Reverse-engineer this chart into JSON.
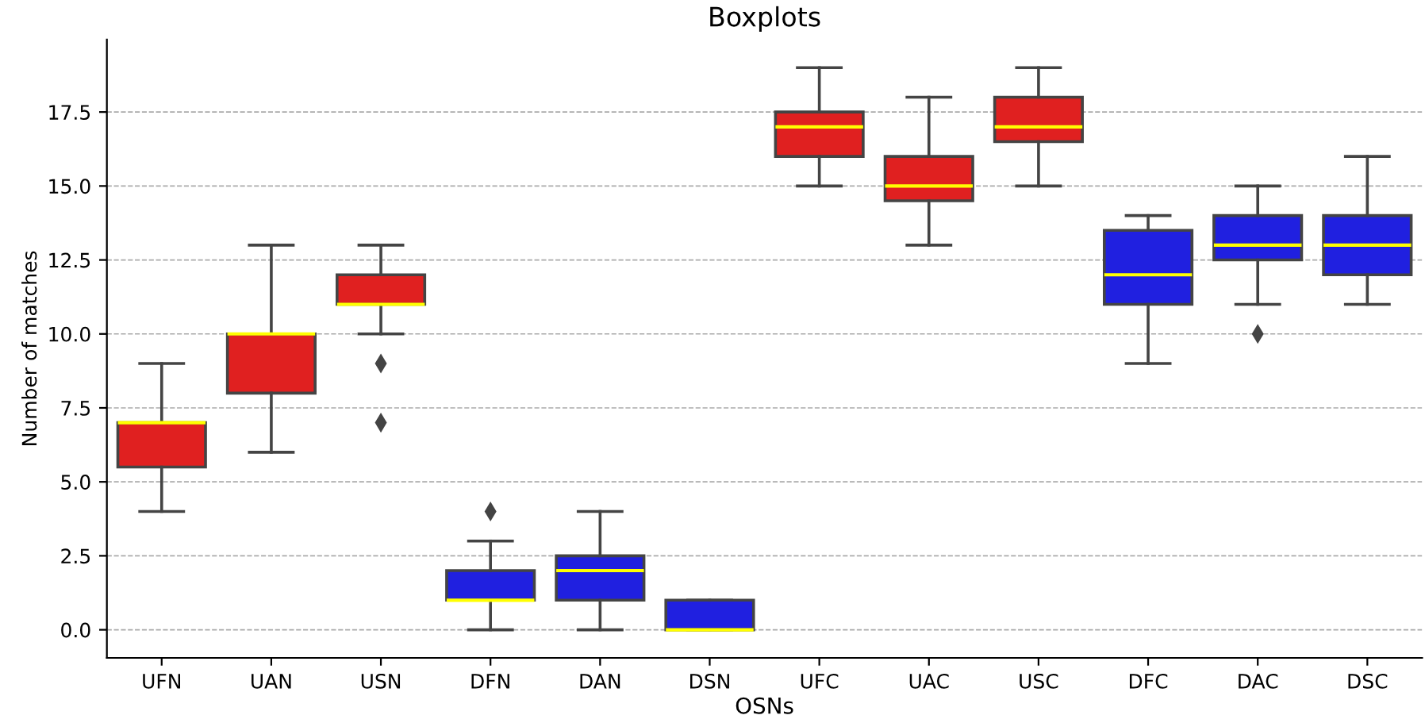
{
  "chart_data": {
    "type": "box",
    "title": "Boxplots",
    "xlabel": "OSNs",
    "ylabel": "Number of matches",
    "categories": [
      "UFN",
      "UAN",
      "USN",
      "DFN",
      "DAN",
      "DSN",
      "UFC",
      "UAC",
      "USC",
      "DFC",
      "DAC",
      "DSC"
    ],
    "colors": [
      "#e02020",
      "#e02020",
      "#e02020",
      "#2020e0",
      "#2020e0",
      "#2020e0",
      "#e02020",
      "#e02020",
      "#e02020",
      "#2020e0",
      "#2020e0",
      "#2020e0"
    ],
    "boxes": [
      {
        "low": 4,
        "q1": 5.5,
        "median": 7,
        "q3": 7,
        "high": 9
      },
      {
        "low": 6,
        "q1": 8,
        "median": 10,
        "q3": 10,
        "high": 13
      },
      {
        "low": 10,
        "q1": 11,
        "median": 11,
        "q3": 12,
        "high": 13,
        "outliers": [
          9,
          7
        ]
      },
      {
        "low": 0,
        "q1": 1,
        "median": 1,
        "q3": 2,
        "high": 3,
        "outliers": [
          4
        ]
      },
      {
        "low": 0,
        "q1": 1,
        "median": 2,
        "q3": 2.5,
        "high": 4
      },
      {
        "low": 0,
        "q1": 0,
        "median": 0,
        "q3": 1,
        "high": 1
      },
      {
        "low": 15,
        "q1": 16,
        "median": 17,
        "q3": 17.5,
        "high": 19
      },
      {
        "low": 13,
        "q1": 14.5,
        "median": 15,
        "q3": 16,
        "high": 18
      },
      {
        "low": 15,
        "q1": 16.5,
        "median": 17,
        "q3": 18,
        "high": 19
      },
      {
        "low": 9,
        "q1": 11,
        "median": 12,
        "q3": 13.5,
        "high": 14
      },
      {
        "low": 11,
        "q1": 12.5,
        "median": 13,
        "q3": 14,
        "high": 15,
        "outliers": [
          10
        ]
      },
      {
        "low": 11,
        "q1": 12,
        "median": 13,
        "q3": 14,
        "high": 16
      }
    ],
    "ylim": [
      -0.95,
      19.95
    ],
    "yticks": [
      {
        "value": 0,
        "label": "0.0"
      },
      {
        "value": 2.5,
        "label": "2.5"
      },
      {
        "value": 5,
        "label": "5.0"
      },
      {
        "value": 7.5,
        "label": "7.5"
      },
      {
        "value": 10,
        "label": "10.0"
      },
      {
        "value": 12.5,
        "label": "12.5"
      },
      {
        "value": 15,
        "label": "15.0"
      },
      {
        "value": 17.5,
        "label": "17.5"
      }
    ],
    "grid": "y",
    "legend": false
  }
}
